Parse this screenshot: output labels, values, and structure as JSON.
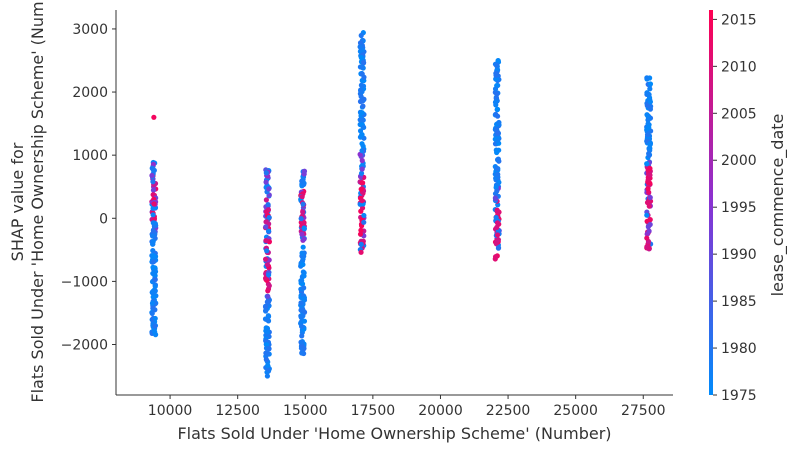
{
  "chart_data": {
    "type": "scatter",
    "title": "",
    "xlabel": "Flats Sold Under 'Home Ownership Scheme' (Number)",
    "ylabel_lines": [
      "SHAP value for",
      "Flats Sold Under 'Home Ownership Scheme' (Num"
    ],
    "xlim": [
      8000,
      28600
    ],
    "ylim": [
      -2800,
      3300
    ],
    "x_ticks": [
      10000,
      12500,
      15000,
      17500,
      20000,
      22500,
      25000,
      27500
    ],
    "y_ticks": [
      -2000,
      -1000,
      0,
      1000,
      2000,
      3000
    ],
    "grid": false,
    "color_feature": "lease_commence_date",
    "colorbar": {
      "min": 1975,
      "max": 2016,
      "ticks": [
        1975,
        1980,
        1985,
        1990,
        1995,
        2000,
        2005,
        2010,
        2015
      ],
      "low_color": "#008bfb",
      "high_color": "#ff0052",
      "mid_color": "#8a32d2"
    },
    "clusters": [
      {
        "x": 9400,
        "y_min": -1850,
        "y_max": 900,
        "outliers": [
          {
            "y": 1600,
            "year": 2014
          }
        ],
        "pink_range": [
          -50,
          700
        ],
        "mixed_range": [
          -500,
          900
        ]
      },
      {
        "x": 13600,
        "y_min": -2450,
        "y_max": 780,
        "outliers": [
          {
            "y": -2500,
            "year": 1978
          }
        ],
        "pink_range": [
          -1150,
          350
        ],
        "mixed_range": [
          -1300,
          780
        ]
      },
      {
        "x": 14900,
        "y_min": -2150,
        "y_max": 750,
        "outliers": [],
        "pink_range": [
          -300,
          500
        ],
        "mixed_range": [
          -500,
          750
        ]
      },
      {
        "x": 17100,
        "y_min": -650,
        "y_max": 3030,
        "outliers": [],
        "pink_range": [
          -600,
          700
        ],
        "mixed_range": [
          -650,
          1200
        ]
      },
      {
        "x": 22100,
        "y_min": -660,
        "y_max": 2500,
        "outliers": [],
        "pink_range": [
          -660,
          300
        ],
        "mixed_range": [
          -660,
          500
        ]
      },
      {
        "x": 27700,
        "y_min": -520,
        "y_max": 2250,
        "outliers": [],
        "pink_range": [
          -500,
          1000
        ],
        "mixed_range": [
          -520,
          1000
        ]
      }
    ]
  }
}
